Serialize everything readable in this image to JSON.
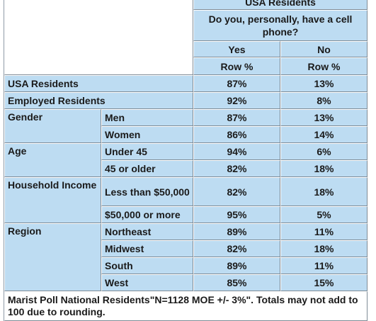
{
  "header": {
    "group_title": "USA Residents",
    "question": "Do you, personally, have a cell phone?",
    "col_yes": "Yes",
    "col_no": "No",
    "row_pct_1": "Row %",
    "row_pct_2": "Row %"
  },
  "rows": {
    "usa_residents": {
      "label": "USA Residents",
      "yes": "87%",
      "no": "13%"
    },
    "employed": {
      "label": "Employed Residents",
      "yes": "92%",
      "no": "8%"
    },
    "gender": {
      "label": "Gender",
      "men": {
        "label": "Men",
        "yes": "87%",
        "no": "13%"
      },
      "women": {
        "label": "Women",
        "yes": "86%",
        "no": "14%"
      }
    },
    "age": {
      "label": "Age",
      "under45": {
        "label": "Under 45",
        "yes": "94%",
        "no": "6%"
      },
      "over45": {
        "label": "45 or older",
        "yes": "82%",
        "no": "18%"
      }
    },
    "income": {
      "label": "Household Income",
      "low": {
        "label": "Less than $50,000",
        "yes": "82%",
        "no": "18%"
      },
      "high": {
        "label": "$50,000 or more",
        "yes": "95%",
        "no": "5%"
      }
    },
    "region": {
      "label": "Region",
      "northeast": {
        "label": "Northeast",
        "yes": "89%",
        "no": "11%"
      },
      "midwest": {
        "label": "Midwest",
        "yes": "82%",
        "no": "18%"
      },
      "south": {
        "label": "South",
        "yes": "89%",
        "no": "11%"
      },
      "west": {
        "label": "West",
        "yes": "85%",
        "no": "15%"
      }
    }
  },
  "footnote": "Marist Poll National Residents\"N=1128 MOE +/- 3%\". Totals may not add to 100 due to rounding."
}
